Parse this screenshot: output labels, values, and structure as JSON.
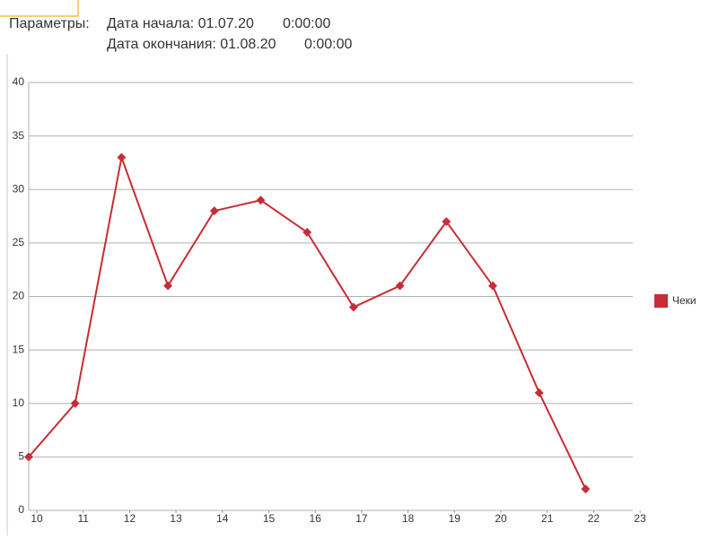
{
  "parameters": {
    "label": "Параметры:",
    "start": {
      "date": "Дата начала: 01.07.20",
      "time": "0:00:00"
    },
    "end": {
      "date": "Дата окончания: 01.08.20",
      "time": "0:00:00"
    }
  },
  "chart_data": {
    "type": "line",
    "categories": [
      "10",
      "11",
      "12",
      "13",
      "14",
      "15",
      "16",
      "17",
      "18",
      "19",
      "20",
      "21",
      "22",
      "23"
    ],
    "series": [
      {
        "name": "Чеки",
        "color": "#c62d35",
        "values": [
          5,
          10,
          33,
          21,
          28,
          29,
          26,
          19,
          21,
          27,
          21,
          11,
          2,
          null
        ]
      }
    ],
    "ylim": [
      0,
      40
    ],
    "yticks": [
      0,
      5,
      10,
      15,
      20,
      25,
      30,
      35,
      40
    ],
    "grid": true,
    "legend": "right"
  }
}
